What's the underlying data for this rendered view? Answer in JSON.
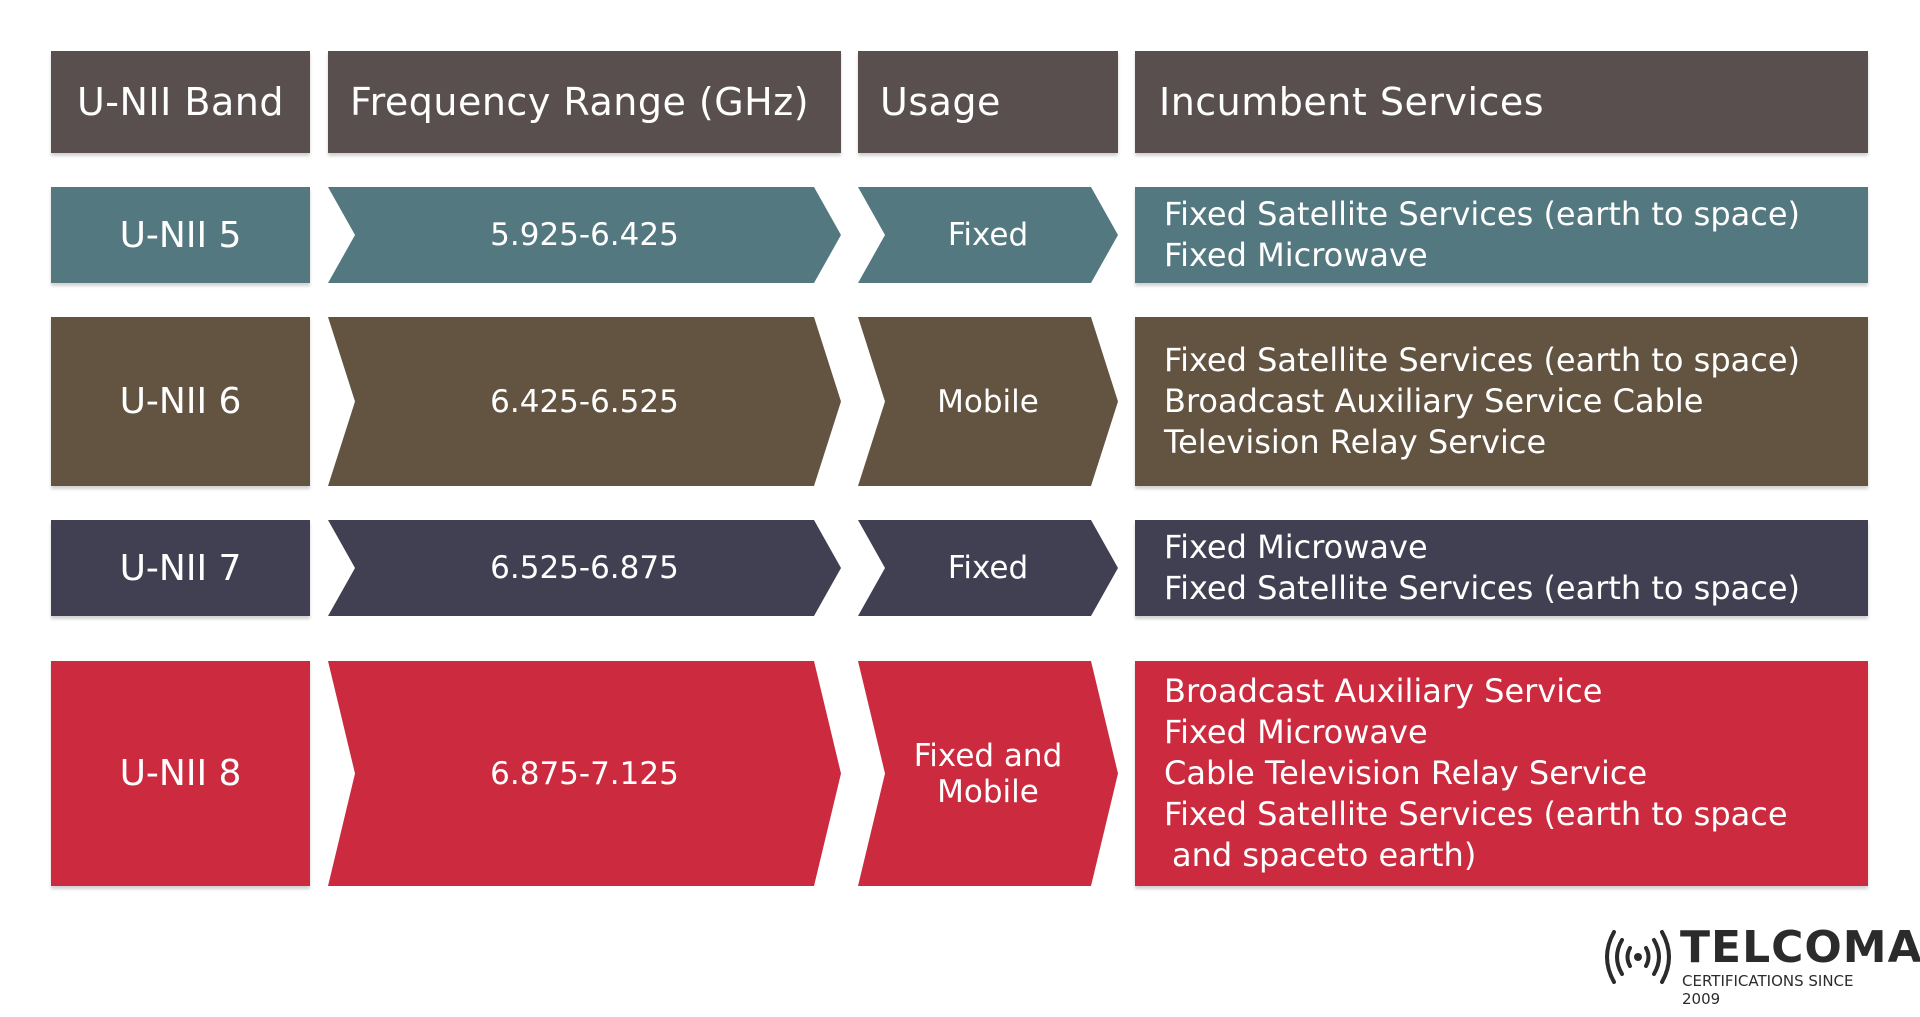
{
  "headers": [
    "U-NII Band",
    "Frequency Range (GHz)",
    "Usage",
    "Incumbent Services"
  ],
  "rows": [
    {
      "band": "U-NII 5",
      "range": "5.925-6.425",
      "usage": "Fixed",
      "services": [
        "Fixed Satellite Services (earth to space)",
        "Fixed Microwave"
      ],
      "color": "#537880"
    },
    {
      "band": "U-NII 6",
      "range": "6.425-6.525",
      "usage": "Mobile",
      "services": [
        "Fixed Satellite Services (earth to space)",
        "Broadcast Auxiliary Service Cable",
        "Television Relay Service"
      ],
      "color": "#635442"
    },
    {
      "band": "U-NII 7",
      "range": "6.525-6.875",
      "usage": "Fixed",
      "services": [
        "Fixed Microwave",
        "Fixed Satellite Services (earth to space)"
      ],
      "color": "#414052"
    },
    {
      "band": "U-NII 8",
      "range": "6.875-7.125",
      "usage": "Fixed and Mobile",
      "services": [
        "Broadcast Auxiliary Service",
        "Fixed Microwave",
        "Cable Television Relay Service",
        "Fixed Satellite Services (earth to space",
        "and spaceto earth)"
      ],
      "color": "#cc2a3e"
    }
  ],
  "header_color": "#5a4f4f",
  "logo": {
    "name": "TELCOMA",
    "tagline": "CERTIFICATIONS SINCE 2009",
    "icon": "broadcast-signal-icon"
  }
}
